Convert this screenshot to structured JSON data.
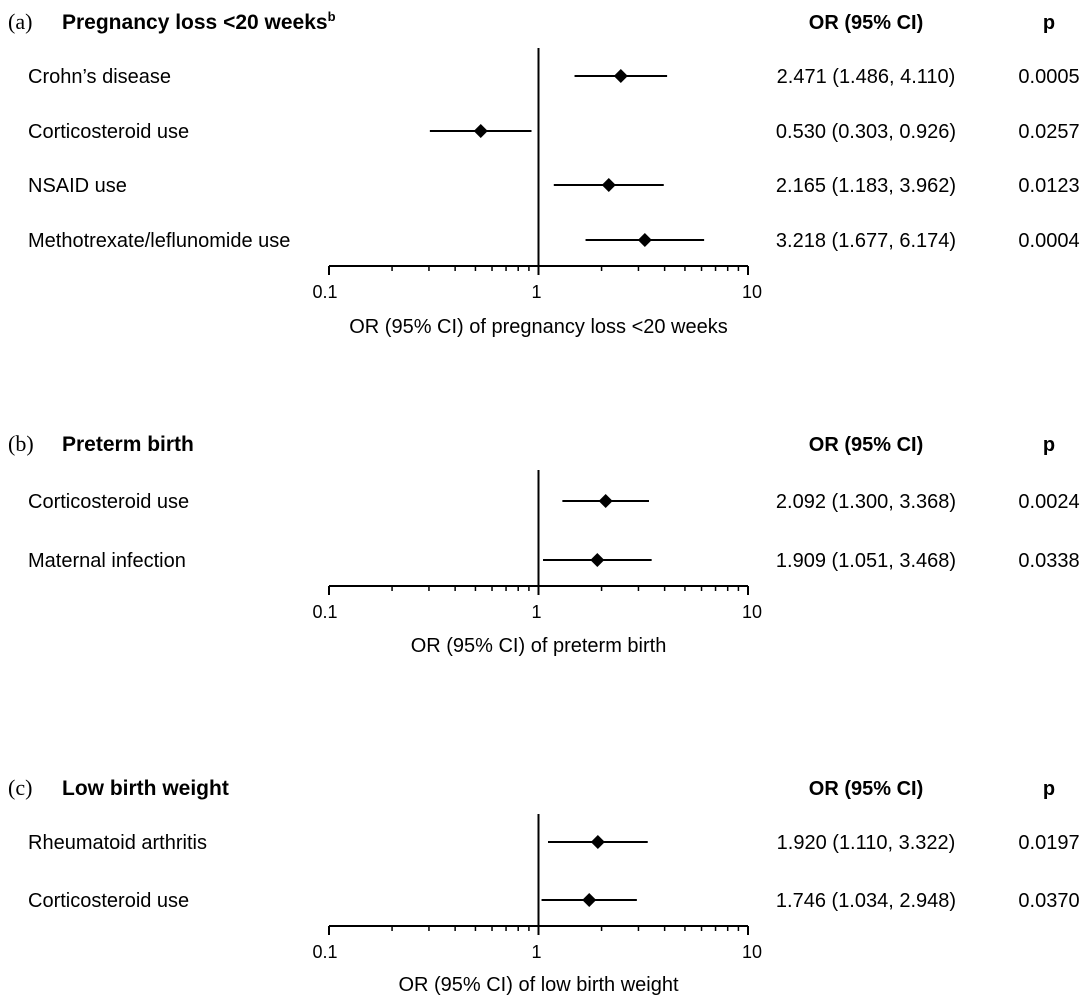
{
  "chart_data": [
    {
      "type": "forest",
      "panel": "(a)",
      "title": "Pregnancy loss <20 weeks",
      "title_sup": "b",
      "col_or": "OR (95% CI)",
      "col_p": "p",
      "xscale": "log",
      "xlim": [
        0.1,
        10
      ],
      "xticks": [
        "0.1",
        "1",
        "10"
      ],
      "reference_line": 1,
      "xlabel": "OR (95% CI) of pregnancy loss <20 weeks",
      "rows": [
        {
          "label": "Crohn’s disease",
          "or": 2.471,
          "lo": 1.486,
          "hi": 4.11,
          "text": "2.471 (1.486, 4.110)",
          "p": "0.0005"
        },
        {
          "label": "Corticosteroid use",
          "or": 0.53,
          "lo": 0.303,
          "hi": 0.926,
          "text": "0.530 (0.303, 0.926)",
          "p": "0.0257"
        },
        {
          "label": "NSAID use",
          "or": 2.165,
          "lo": 1.183,
          "hi": 3.962,
          "text": "2.165 (1.183, 3.962)",
          "p": "0.0123"
        },
        {
          "label": "Methotrexate/leflunomide use",
          "or": 3.218,
          "lo": 1.677,
          "hi": 6.174,
          "text": "3.218 (1.677, 6.174)",
          "p": "0.0004"
        }
      ]
    },
    {
      "type": "forest",
      "panel": "(b)",
      "title": "Preterm birth",
      "title_sup": "",
      "col_or": "OR (95% CI)",
      "col_p": "p",
      "xscale": "log",
      "xlim": [
        0.1,
        10
      ],
      "xticks": [
        "0.1",
        "1",
        "10"
      ],
      "reference_line": 1,
      "xlabel": "OR (95% CI) of preterm birth",
      "rows": [
        {
          "label": "Corticosteroid use",
          "or": 2.092,
          "lo": 1.3,
          "hi": 3.368,
          "text": "2.092 (1.300, 3.368)",
          "p": "0.0024"
        },
        {
          "label": "Maternal infection",
          "or": 1.909,
          "lo": 1.051,
          "hi": 3.468,
          "text": "1.909 (1.051, 3.468)",
          "p": "0.0338"
        }
      ]
    },
    {
      "type": "forest",
      "panel": "(c)",
      "title": "Low birth weight",
      "title_sup": "",
      "col_or": "OR (95% CI)",
      "col_p": "p",
      "xscale": "log",
      "xlim": [
        0.1,
        10
      ],
      "xticks": [
        "0.1",
        "1",
        "10"
      ],
      "reference_line": 1,
      "xlabel": "OR (95% CI) of low birth weight",
      "rows": [
        {
          "label": "Rheumatoid arthritis",
          "or": 1.92,
          "lo": 1.11,
          "hi": 3.322,
          "text": "1.920 (1.110, 3.322)",
          "p": "0.0197"
        },
        {
          "label": "Corticosteroid use",
          "or": 1.746,
          "lo": 1.034,
          "hi": 2.948,
          "text": "1.746 (1.034, 2.948)",
          "p": "0.0370"
        }
      ]
    }
  ]
}
